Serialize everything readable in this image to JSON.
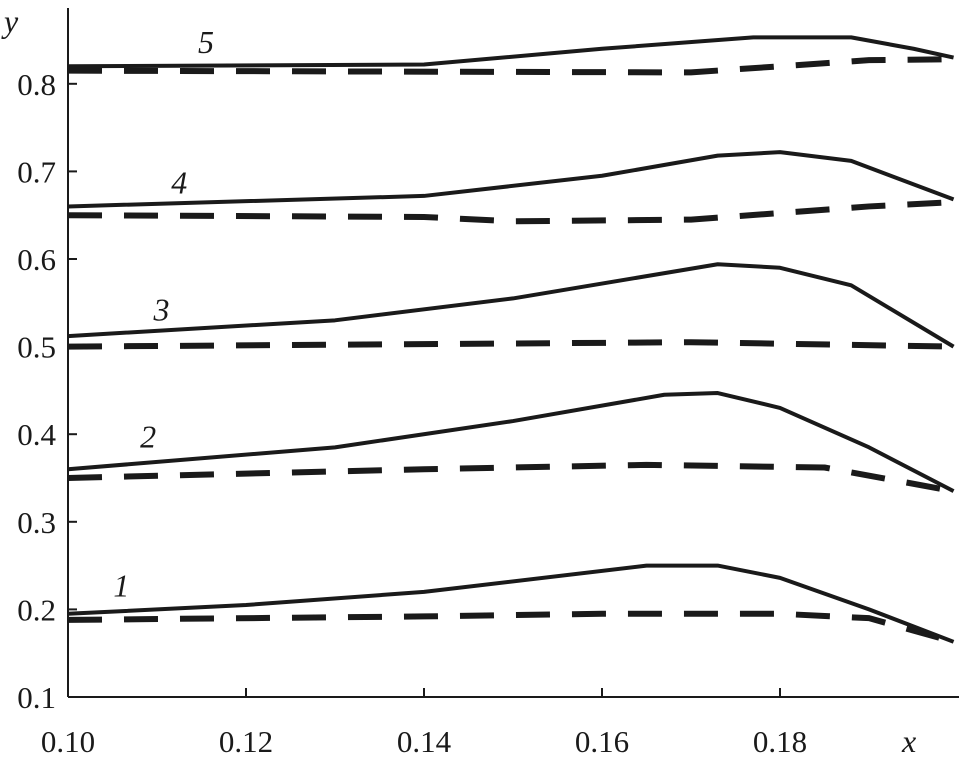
{
  "chart_data": {
    "type": "line",
    "title": "",
    "xlabel": "x",
    "ylabel": "y",
    "xlim": [
      0.1,
      0.2
    ],
    "ylim": [
      0.1,
      0.88
    ],
    "xticks": [
      "0.10",
      "0.12",
      "0.14",
      "0.16",
      "0.18"
    ],
    "yticks": [
      "0.1",
      "0.2",
      "0.3",
      "0.4",
      "0.5",
      "0.6",
      "0.7",
      "0.8"
    ],
    "grid": false,
    "series": [
      {
        "name": "1",
        "style": "solid",
        "x": [
          0.1,
          0.12,
          0.14,
          0.165,
          0.173,
          0.18,
          0.19,
          0.1995
        ],
        "y": [
          0.195,
          0.205,
          0.22,
          0.25,
          0.25,
          0.236,
          0.2,
          0.163
        ]
      },
      {
        "name": "1",
        "style": "dashed",
        "x": [
          0.1,
          0.14,
          0.16,
          0.18,
          0.19,
          0.1995
        ],
        "y": [
          0.188,
          0.192,
          0.195,
          0.195,
          0.19,
          0.163
        ]
      },
      {
        "name": "2",
        "style": "solid",
        "x": [
          0.1,
          0.13,
          0.15,
          0.167,
          0.173,
          0.18,
          0.19,
          0.1995
        ],
        "y": [
          0.36,
          0.385,
          0.415,
          0.445,
          0.447,
          0.43,
          0.385,
          0.335
        ]
      },
      {
        "name": "2",
        "style": "dashed",
        "x": [
          0.1,
          0.14,
          0.165,
          0.185,
          0.1995
        ],
        "y": [
          0.35,
          0.36,
          0.365,
          0.362,
          0.335
        ]
      },
      {
        "name": "3",
        "style": "solid",
        "x": [
          0.1,
          0.13,
          0.15,
          0.173,
          0.18,
          0.188,
          0.1995
        ],
        "y": [
          0.512,
          0.53,
          0.555,
          0.594,
          0.59,
          0.57,
          0.5
        ]
      },
      {
        "name": "3",
        "style": "dashed",
        "x": [
          0.1,
          0.17,
          0.1995
        ],
        "y": [
          0.5,
          0.505,
          0.5
        ]
      },
      {
        "name": "4",
        "style": "solid",
        "x": [
          0.1,
          0.14,
          0.16,
          0.173,
          0.18,
          0.188,
          0.1995
        ],
        "y": [
          0.66,
          0.672,
          0.695,
          0.718,
          0.722,
          0.712,
          0.668
        ]
      },
      {
        "name": "4",
        "style": "dashed",
        "x": [
          0.1,
          0.14,
          0.15,
          0.17,
          0.19,
          0.1995
        ],
        "y": [
          0.65,
          0.648,
          0.643,
          0.645,
          0.66,
          0.665
        ]
      },
      {
        "name": "5",
        "style": "solid",
        "x": [
          0.1,
          0.14,
          0.16,
          0.177,
          0.188,
          0.195,
          0.1995
        ],
        "y": [
          0.82,
          0.822,
          0.84,
          0.853,
          0.853,
          0.84,
          0.83
        ]
      },
      {
        "name": "5",
        "style": "dashed",
        "x": [
          0.1,
          0.17,
          0.18,
          0.19,
          0.1995
        ],
        "y": [
          0.815,
          0.813,
          0.82,
          0.827,
          0.828
        ]
      }
    ],
    "curve_labels": [
      {
        "text": "1",
        "x": 0.106,
        "y": 0.215
      },
      {
        "text": "2",
        "x": 0.109,
        "y": 0.385
      },
      {
        "text": "3",
        "x": 0.1105,
        "y": 0.53
      },
      {
        "text": "4",
        "x": 0.1125,
        "y": 0.675
      },
      {
        "text": "5",
        "x": 0.1155,
        "y": 0.835
      }
    ],
    "color": "#1a1a1a"
  }
}
